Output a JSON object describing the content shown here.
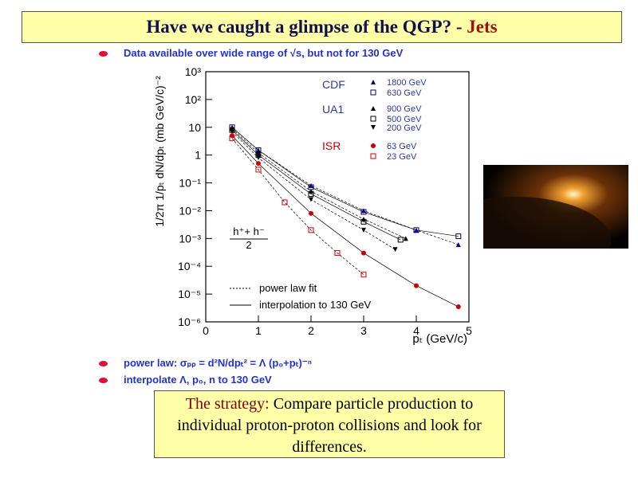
{
  "slide": {
    "title": "Have we caught a glimpse of the QGP? - ",
    "title_highlight": "Jets",
    "bullets": [
      "Data available over wide range of √s,  but not for 130 GeV",
      "power law:  σₚₚ = d²N/dpₜ² = Λ (p₀+pₜ)⁻ⁿ",
      "interpolate Λ, p₀, n to 130 GeV"
    ],
    "strategy_label": "The strategy:",
    "strategy_text": " Compare particle production to individual proton-proton collisions and look for differences."
  },
  "chart_data": {
    "type": "scatter",
    "ylabel": "1/2π 1/pₜ dN/dpₜ (mb GeV/c)⁻²",
    "xlabel": "pₜ (GeV/c)",
    "xlim": [
      0,
      5
    ],
    "xticks": [
      0,
      1,
      2,
      3,
      4,
      5
    ],
    "ylim": [
      1e-06,
      1000
    ],
    "log_y": true,
    "yticks": [
      {
        "value": 1000,
        "label": "10³"
      },
      {
        "value": 100,
        "label": "10²"
      },
      10,
      1,
      {
        "value": 0.1,
        "label": "10⁻¹"
      },
      {
        "value": 0.01,
        "label": "10⁻²"
      },
      {
        "value": 0.001,
        "label": "10⁻³"
      },
      {
        "value": 0.0001,
        "label": "10⁻⁴"
      },
      {
        "value": 1e-05,
        "label": "10⁻⁵"
      },
      {
        "value": 1e-06,
        "label": "10⁻⁶"
      }
    ],
    "legend_groups": [
      "CDF",
      "UA1",
      "ISR"
    ],
    "series": [
      {
        "name": "1800 GeV",
        "color": "#000080",
        "marker": "triangle",
        "x": [
          0.5,
          1,
          2,
          3,
          4,
          4.8
        ],
        "values": [
          10,
          1.5,
          0.08,
          0.01,
          0.002,
          0.0006
        ]
      },
      {
        "name": "630 GeV",
        "color": "#000080",
        "marker": "open-square",
        "x": [
          0.5,
          1,
          2,
          3,
          4,
          4.8
        ],
        "values": [
          10,
          1.5,
          0.07,
          0.009,
          0.002,
          0.0012
        ]
      },
      {
        "name": "900 GeV",
        "color": "#000000",
        "marker": "triangle",
        "x": [
          0.5,
          1,
          2,
          3,
          3.8
        ],
        "values": [
          9,
          1.2,
          0.05,
          0.005,
          0.001
        ]
      },
      {
        "name": "500 GeV",
        "color": "#000000",
        "marker": "open-square",
        "x": [
          0.5,
          1,
          2,
          3,
          3.7
        ],
        "values": [
          8,
          1,
          0.04,
          0.004,
          0.0009
        ]
      },
      {
        "name": "200 GeV",
        "color": "#000000",
        "marker": "triangle-down",
        "x": [
          0.5,
          1,
          2,
          3,
          3.6
        ],
        "values": [
          7,
          0.8,
          0.025,
          0.002,
          0.0004
        ]
      },
      {
        "name": "63 GeV",
        "color": "#cc0000",
        "marker": "circle",
        "x": [
          0.5,
          1,
          2,
          3,
          4,
          4.8
        ],
        "values": [
          5,
          0.5,
          0.008,
          0.0003,
          2e-05,
          3.5e-06
        ]
      },
      {
        "name": "23 GeV",
        "color": "#cc0000",
        "marker": "open-square",
        "x": [
          0.5,
          1,
          1.5,
          2,
          2.5,
          3
        ],
        "values": [
          4,
          0.3,
          0.02,
          0.002,
          0.0003,
          5e-05
        ]
      }
    ],
    "fraction": {
      "numerator": "h⁺+ h⁻",
      "denominator": "2"
    },
    "annotations": [
      "power law fit",
      "interpolation to 130 GeV"
    ]
  }
}
